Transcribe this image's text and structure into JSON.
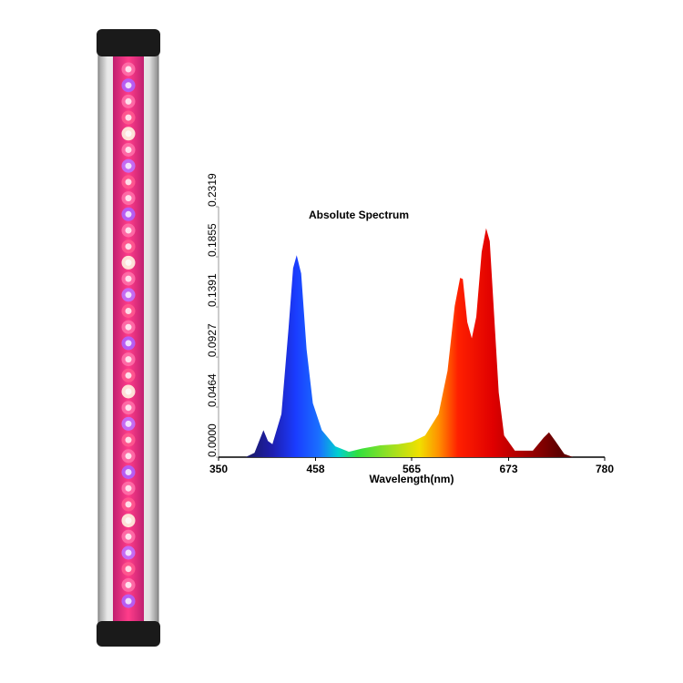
{
  "chart_data": {
    "type": "area",
    "title": "Absolute Spectrum",
    "x_label": "Wavelength(nm)",
    "x": [
      380,
      390,
      400,
      405,
      410,
      420,
      428,
      433,
      437,
      442,
      448,
      455,
      465,
      480,
      495,
      510,
      530,
      550,
      565,
      580,
      595,
      605,
      613,
      619,
      622,
      627,
      632,
      637,
      643,
      648,
      652,
      657,
      662,
      668,
      680,
      700,
      712,
      718,
      725,
      735,
      745
    ],
    "values": [
      0,
      0.004,
      0.025,
      0.015,
      0.012,
      0.04,
      0.12,
      0.175,
      0.187,
      0.17,
      0.1,
      0.05,
      0.025,
      0.01,
      0.005,
      0.008,
      0.011,
      0.012,
      0.014,
      0.02,
      0.04,
      0.08,
      0.14,
      0.166,
      0.165,
      0.125,
      0.11,
      0.13,
      0.19,
      0.212,
      0.2,
      0.13,
      0.06,
      0.02,
      0.006,
      0.006,
      0.018,
      0.023,
      0.015,
      0.003,
      0
    ],
    "xlim": [
      350,
      780
    ],
    "xticks": [
      350,
      458,
      565,
      673,
      780
    ],
    "ylim": [
      0,
      0.2319
    ],
    "yticks": [
      {
        "value": 0,
        "label": "0.0000"
      },
      0.0464,
      0.0927,
      0.1391,
      0.1855,
      0.2319
    ]
  }
}
